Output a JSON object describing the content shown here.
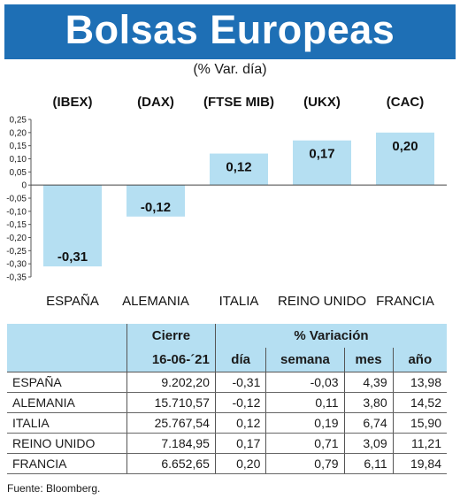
{
  "header": {
    "title": "Bolsas Europeas",
    "subtitle": "(% Var. día)"
  },
  "chart_data": {
    "type": "bar",
    "categories": [
      "ESPAÑA",
      "ALEMANIA",
      "ITALIA",
      "REINO UNIDO",
      "FRANCIA"
    ],
    "indices": [
      "(IBEX)",
      "(DAX)",
      "(FTSE MIB)",
      "(UKX)",
      "(CAC)"
    ],
    "values": [
      -0.31,
      -0.12,
      0.12,
      0.17,
      0.2
    ],
    "value_labels": [
      "-0,31",
      "-0,12",
      "0,12",
      "0,17",
      "0,20"
    ],
    "y_ticks": [
      "0,25",
      "0,20",
      "0,15",
      "0,10",
      "0,05",
      "0",
      "-0,05",
      "-0,10",
      "-0,15",
      "-0,20",
      "-0,25",
      "-0,30",
      "-0,35"
    ],
    "y_tick_values": [
      0.25,
      0.2,
      0.15,
      0.1,
      0.05,
      0,
      -0.05,
      -0.1,
      -0.15,
      -0.2,
      -0.25,
      -0.3,
      -0.35
    ],
    "ylim": [
      -0.35,
      0.25
    ],
    "bar_color": "#b5dff2"
  },
  "table": {
    "group_headers": {
      "cierre": "Cierre",
      "variacion": "% Variación"
    },
    "sub_headers": {
      "date": "16-06-´21",
      "dia": "día",
      "semana": "semana",
      "mes": "mes",
      "ano": "año"
    },
    "rows": [
      {
        "name": "ESPAÑA",
        "cierre": "9.202,20",
        "dia": "-0,31",
        "semana": "-0,03",
        "mes": "4,39",
        "ano": "13,98"
      },
      {
        "name": "ALEMANIA",
        "cierre": "15.710,57",
        "dia": "-0,12",
        "semana": "0,11",
        "mes": "3,80",
        "ano": "14,52"
      },
      {
        "name": "ITALIA",
        "cierre": "25.767,54",
        "dia": "0,12",
        "semana": "0,19",
        "mes": "6,74",
        "ano": "15,90"
      },
      {
        "name": "REINO UNIDO",
        "cierre": "7.184,95",
        "dia": "0,17",
        "semana": "0,71",
        "mes": "3,09",
        "ano": "11,21"
      },
      {
        "name": "FRANCIA",
        "cierre": "6.652,65",
        "dia": "0,20",
        "semana": "0,79",
        "mes": "6,11",
        "ano": "19,84"
      }
    ]
  },
  "source": "Fuente: Bloomberg."
}
